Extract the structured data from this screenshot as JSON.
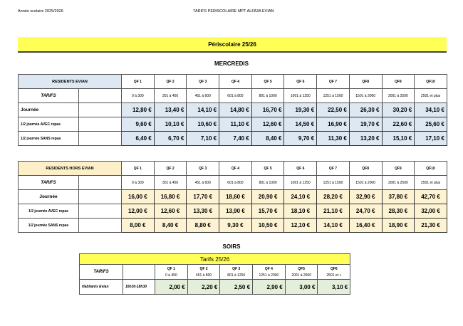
{
  "header": {
    "left": "Année scolaire 2025/2026",
    "center": "TARIFS PERISCOLAIRE MPT ALFA3A EVIAN"
  },
  "title": "Périscolaire 25/26",
  "mercredis": {
    "title": "MERCREDIS",
    "qf_labels": [
      "QF 1",
      "QF 2",
      "QF 3",
      "QF 4",
      "QF 5",
      "QF 6",
      "QF 7",
      "QF8",
      "QF9",
      "QF10"
    ],
    "qf_ranges": [
      "0 à 300",
      "301 à 450",
      "451 à 600",
      "601 à 800",
      "801 à 1000",
      "1001 à 1250",
      "1251 à 1500",
      "1501 à 2000",
      "2001 à 2500",
      "2501 et plus"
    ],
    "tarifs_label": "TARIFS",
    "residents": {
      "title": "RESIDENTS EVIAN",
      "accent": "#dde8f3",
      "rows": [
        {
          "label": "Journée",
          "values": [
            "12,80 €",
            "13,40 €",
            "14,10 €",
            "14,80 €",
            "16,70 €",
            "19,30 €",
            "22,50 €",
            "26,30 €",
            "30,20 €",
            "34,10 €"
          ]
        },
        {
          "label": "1/2 journée AVEC repas",
          "values": [
            "9,60 €",
            "10,10 €",
            "10,60 €",
            "11,10 €",
            "12,60 €",
            "14,50 €",
            "16,90 €",
            "19,70 €",
            "22,60 €",
            "25,60 €"
          ]
        },
        {
          "label": "1/2 journée SANS repas",
          "values": [
            "6,40 €",
            "6,70 €",
            "7,10 €",
            "7,40 €",
            "8,40 €",
            "9,70 €",
            "11,30 €",
            "13,20 €",
            "15,10 €",
            "17,10 €"
          ]
        }
      ]
    },
    "hors": {
      "title": "RESIDENTS HORS EVIAN",
      "accent": "#fdf3d3",
      "rows": [
        {
          "label": "Journée",
          "values": [
            "16,00 €",
            "16,80 €",
            "17,70 €",
            "18,60 €",
            "20,90 €",
            "24,10 €",
            "28,20 €",
            "32,90 €",
            "37,80 €",
            "42,70 €"
          ]
        },
        {
          "label": "1/2 journée AVEC repas",
          "values": [
            "12,00 €",
            "12,60 €",
            "13,30 €",
            "13,90 €",
            "15,70 €",
            "18,10 €",
            "21,10 €",
            "24,70 €",
            "28,30 €",
            "32,00 €"
          ]
        },
        {
          "label": "1/2 journée SANS repas",
          "values": [
            "8,00 €",
            "8,40 €",
            "8,80 €",
            "9,30 €",
            "10,50 €",
            "12,10 €",
            "14,10 €",
            "16,40 €",
            "18,90 €",
            "21,30 €"
          ]
        }
      ]
    }
  },
  "soirs": {
    "title": "SOIRS",
    "table_title": "Tarifs 25/26",
    "tarifs_label": "TARIFS",
    "qf_labels": [
      "QF 1",
      "QF 2",
      "QF 3",
      "QF 4",
      "QF5",
      "QF6"
    ],
    "qf_ranges": [
      "0 à 450",
      "451 à 800",
      "801 à 1250",
      "1251 à 2000",
      "2001 à 2500",
      "2501 et +"
    ],
    "row": {
      "label": "Habitants Evian",
      "hours": "16h30-18h30",
      "values": [
        "2,00 €",
        "2,20 €",
        "2,50 €",
        "2,90 €",
        "3,00 €",
        "3,10 €"
      ]
    }
  }
}
